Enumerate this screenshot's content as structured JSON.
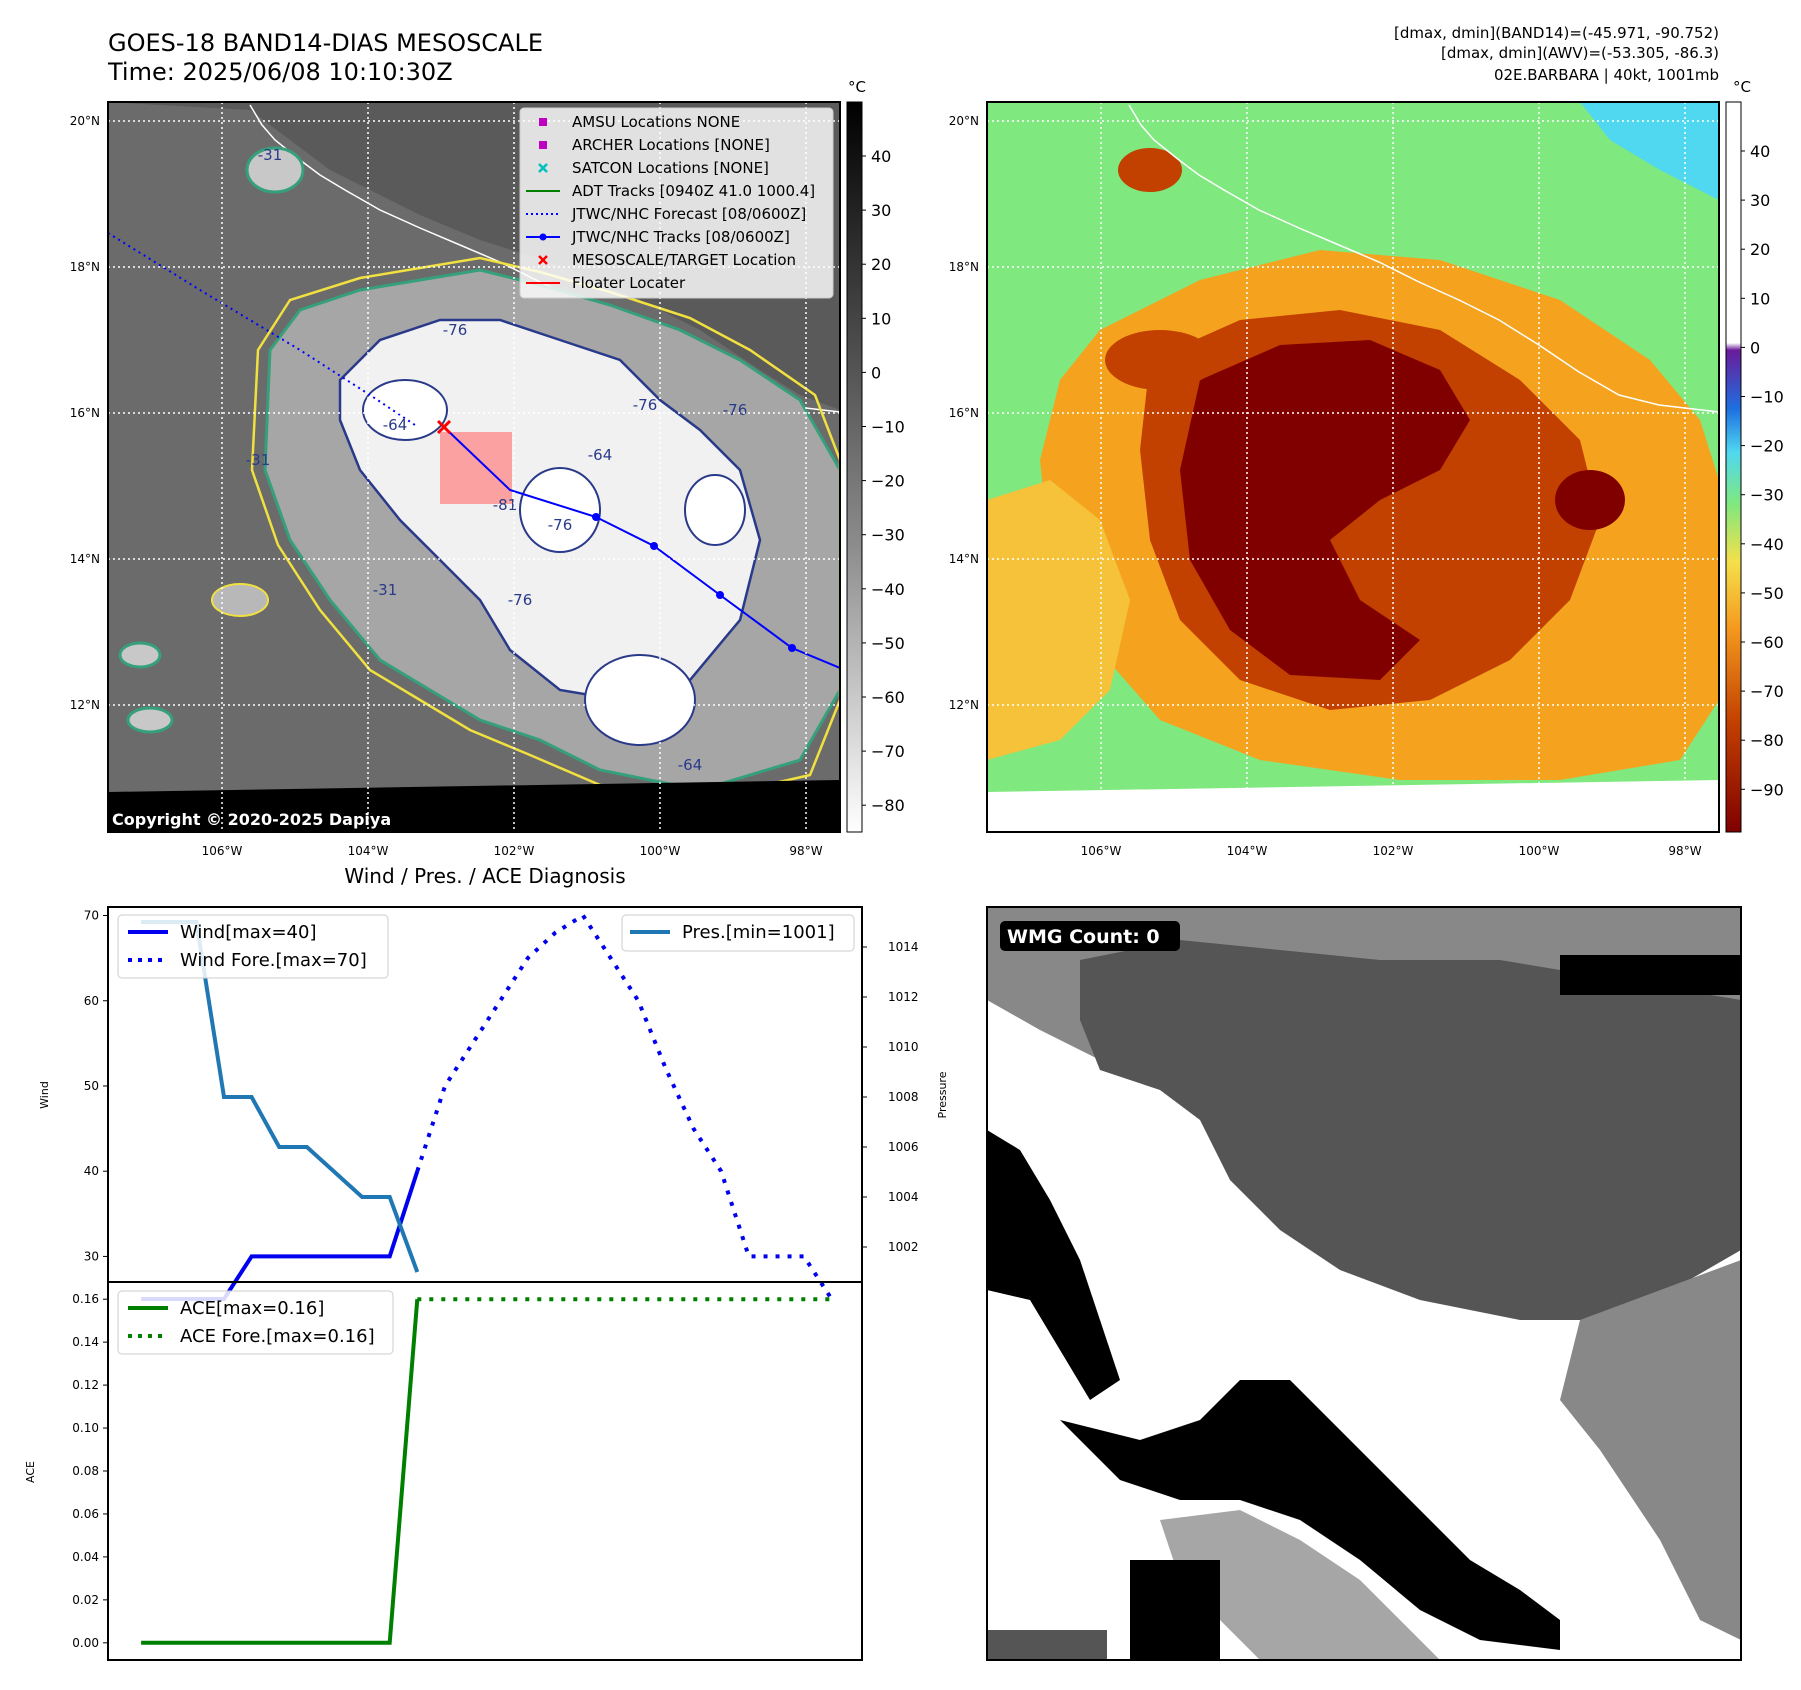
{
  "header": {
    "title_line1": "GOES-18 BAND14-DIAS MESOSCALE",
    "title_line2": "Time: 2025/06/08 10:10:30Z",
    "info_line1": "[dmax, dmin](BAND14)=(-45.971, -90.752)",
    "info_line2": "[dmax, dmin](AWV)=(-53.305, -86.3)",
    "info_line3": "02E.BARBARA | 40kt, 1001mb"
  },
  "map_axes": {
    "lon_labels": [
      "106°W",
      "104°W",
      "102°W",
      "100°W",
      "98°W"
    ],
    "lat_labels": [
      "20°N",
      "18°N",
      "16°N",
      "14°N",
      "12°N"
    ]
  },
  "ir_panel": {
    "colorbar_unit": "°C",
    "colorbar_ticks": [
      "40",
      "30",
      "20",
      "10",
      "0",
      "−10",
      "−20",
      "−30",
      "−40",
      "−50",
      "−60",
      "−70",
      "−80"
    ],
    "copyright": "Copyright © 2020-2025 Dapiya",
    "contour_labels": [
      "-76",
      "-76",
      "-76",
      "-76",
      "-76",
      "-81",
      "-64",
      "-64",
      "-64",
      "-31",
      "-31",
      "-31"
    ],
    "legend": [
      {
        "label": "AMSU Locations NONE",
        "kind": "square",
        "color": "#c000c0"
      },
      {
        "label": "ARCHER Locations [NONE]",
        "kind": "square",
        "color": "#c000c0"
      },
      {
        "label": "SATCON Locations [NONE]",
        "kind": "x",
        "color": "#00bfbf"
      },
      {
        "label": "ADT Tracks [0940Z 41.0 1000.4]",
        "kind": "line",
        "color": "#008000"
      },
      {
        "label": "JTWC/NHC Forecast [08/0600Z]",
        "kind": "dotted",
        "color": "#0000ff"
      },
      {
        "label": "JTWC/NHC Tracks [08/0600Z]",
        "kind": "linedot",
        "color": "#0000ff"
      },
      {
        "label": "MESOSCALE/TARGET Location",
        "kind": "x",
        "color": "#ff0000"
      },
      {
        "label": "Floater Locater",
        "kind": "line",
        "color": "#ff0000"
      }
    ]
  },
  "awv_panel": {
    "colorbar_unit": "°C",
    "colorbar_ticks": [
      "40",
      "30",
      "20",
      "10",
      "0",
      "−10",
      "−20",
      "−30",
      "−40",
      "−50",
      "−60",
      "−70",
      "−80",
      "−90"
    ]
  },
  "wmg_panel": {
    "label": "WMG Count: 0"
  },
  "chart_data": [
    {
      "type": "line",
      "title": "Wind / Pres. / ACE Diagnosis",
      "x": [
        0,
        1,
        2,
        3,
        4,
        5,
        6,
        7,
        8,
        9,
        10,
        11,
        12,
        13,
        14,
        15,
        16,
        17,
        18,
        19,
        20,
        21,
        22,
        23,
        24,
        25
      ],
      "ylabel": "Wind",
      "ylabel_right": "Pressure",
      "ylim": [
        27,
        71
      ],
      "ylim_right": [
        1000.6,
        1015.6
      ],
      "yticks": [
        30,
        40,
        50,
        60,
        70
      ],
      "yticks_right": [
        1002,
        1004,
        1006,
        1008,
        1010,
        1012,
        1014
      ],
      "series": [
        {
          "name": "Wind[max=40]",
          "axis": "left",
          "style": "solid",
          "color": "#0000ee",
          "x": [
            0,
            1,
            2,
            3,
            4,
            5,
            6,
            7,
            8,
            9,
            10
          ],
          "values": [
            25,
            25,
            25,
            25,
            30,
            30,
            30,
            30,
            30,
            30,
            40
          ]
        },
        {
          "name": "Wind Fore.[max=70]",
          "axis": "left",
          "style": "dotted",
          "color": "#0000ee",
          "x": [
            10,
            11,
            12,
            13,
            14,
            15,
            16,
            17,
            18,
            19,
            20,
            21,
            22,
            23,
            24,
            25
          ],
          "values": [
            40,
            50,
            55,
            60,
            65,
            68,
            70,
            65,
            60,
            52,
            45,
            40,
            30,
            30,
            30,
            25
          ]
        },
        {
          "name": "Pres.[min=1001]",
          "axis": "right",
          "style": "solid",
          "color": "#1f77b4",
          "x": [
            0,
            1,
            2,
            3,
            4,
            5,
            6,
            7,
            8,
            9,
            10
          ],
          "values": [
            1015,
            1015,
            1015,
            1008,
            1008,
            1006,
            1006,
            1005,
            1004,
            1004,
            1001
          ]
        }
      ]
    },
    {
      "type": "line",
      "x": [
        0,
        1,
        2,
        3,
        4,
        5,
        6,
        7,
        8,
        9,
        10,
        11,
        12,
        13,
        14,
        15,
        16,
        17,
        18,
        19,
        20,
        21,
        22,
        23,
        24,
        25
      ],
      "ylabel": "ACE",
      "ylim": [
        -0.008,
        0.168
      ],
      "yticks": [
        0.0,
        0.02,
        0.04,
        0.06,
        0.08,
        0.1,
        0.12,
        0.14,
        0.16
      ],
      "ytick_labels": [
        "0.00",
        "0.02",
        "0.04",
        "0.06",
        "0.08",
        "0.10",
        "0.12",
        "0.14",
        "0.16"
      ],
      "series": [
        {
          "name": "ACE[max=0.16]",
          "style": "solid",
          "color": "#008000",
          "x": [
            0,
            1,
            2,
            3,
            4,
            5,
            6,
            7,
            8,
            9,
            10
          ],
          "values": [
            0,
            0,
            0,
            0,
            0,
            0,
            0,
            0,
            0,
            0,
            0.16
          ]
        },
        {
          "name": "ACE Fore.[max=0.16]",
          "style": "dotted",
          "color": "#008000",
          "x": [
            10,
            11,
            12,
            13,
            14,
            15,
            16,
            17,
            18,
            19,
            20,
            21,
            22,
            23,
            24,
            25
          ],
          "values": [
            0.16,
            0.16,
            0.16,
            0.16,
            0.16,
            0.16,
            0.16,
            0.16,
            0.16,
            0.16,
            0.16,
            0.16,
            0.16,
            0.16,
            0.16,
            0.16
          ]
        }
      ]
    }
  ]
}
